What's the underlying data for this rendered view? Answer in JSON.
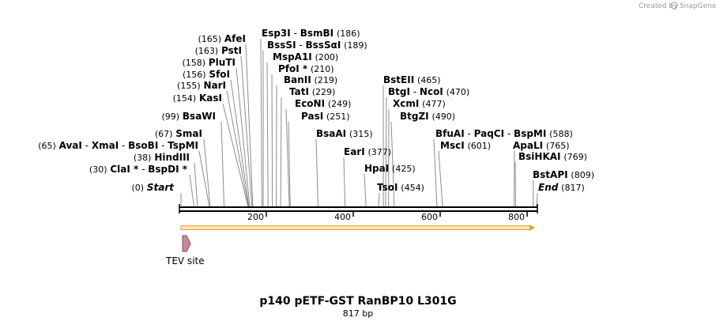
{
  "credit": {
    "prefix": "Created by",
    "brand": "SnapGene"
  },
  "title": "p140 pETF-GST RanBP10 L301G",
  "subtitle": "817 bp",
  "sequence_length": 817,
  "ruler_ticks": [
    "200",
    "400",
    "600",
    "800"
  ],
  "features": [
    {
      "label": "TEV site",
      "start": 0,
      "end": 26,
      "color": "#c9879f"
    }
  ],
  "arrow": {
    "start": 0,
    "end": 817,
    "color": "#e5a32d"
  },
  "site_groups": [
    {
      "names": [
        "End"
      ],
      "pos": "(817)",
      "italic": true
    },
    {
      "names": [
        "BstAPI"
      ],
      "pos": "(809)"
    },
    {
      "names": [
        "BsiHKAI"
      ],
      "pos": "(769)"
    },
    {
      "names": [
        "ApaLI"
      ],
      "pos": "(765)"
    },
    {
      "names": [
        "BfuAI",
        "PaqCI",
        "BspMI"
      ],
      "pos": "(588)"
    },
    {
      "names": [
        "MscI"
      ],
      "pos": "(601)"
    },
    {
      "names": [
        "TsoI"
      ],
      "pos": "(454)"
    },
    {
      "names": [
        "HpaI"
      ],
      "pos": "(425)"
    },
    {
      "names": [
        "EarI"
      ],
      "pos": "(377)"
    },
    {
      "names": [
        "BsaAI"
      ],
      "pos": "(315)"
    },
    {
      "names": [
        "BtgZI"
      ],
      "pos": "(490)"
    },
    {
      "names": [
        "XcmI"
      ],
      "pos": "(477)"
    },
    {
      "names": [
        "BtgI",
        "NcoI"
      ],
      "pos": "(470)"
    },
    {
      "names": [
        "BstEII"
      ],
      "pos": "(465)"
    },
    {
      "names": [
        "PasI"
      ],
      "pos": "(251)"
    },
    {
      "names": [
        "EcoNI"
      ],
      "pos": "(249)"
    },
    {
      "names": [
        "TatI"
      ],
      "pos": "(229)"
    },
    {
      "names": [
        "BanII"
      ],
      "pos": "(219)"
    },
    {
      "names": [
        "PfoI *"
      ],
      "pos": "(210)"
    },
    {
      "names": [
        "MspA1I"
      ],
      "pos": "(200)"
    },
    {
      "names": [
        "BssSI",
        "BssSαI"
      ],
      "pos": "(189)"
    },
    {
      "names": [
        "Esp3I",
        "BsmBI"
      ],
      "pos": "(186)"
    },
    {
      "names": [
        "AfeI"
      ],
      "pos": "(165)"
    },
    {
      "names": [
        "PstI"
      ],
      "pos": "(163)"
    },
    {
      "names": [
        "PluTI"
      ],
      "pos": "(158)"
    },
    {
      "names": [
        "SfoI"
      ],
      "pos": "(156)"
    },
    {
      "names": [
        "NarI"
      ],
      "pos": "(155)"
    },
    {
      "names": [
        "KasI"
      ],
      "pos": "(154)"
    },
    {
      "names": [
        "BsaWI"
      ],
      "pos": "(99)"
    },
    {
      "names": [
        "SmaI"
      ],
      "pos": "(67)"
    },
    {
      "names": [
        "AvaI",
        "XmaI",
        "BsoBI",
        "TspMI"
      ],
      "pos": "(65)"
    },
    {
      "names": [
        "HindIII"
      ],
      "pos": "(38)"
    },
    {
      "names": [
        "ClaI *",
        "BspDI *"
      ],
      "pos": "(30)"
    },
    {
      "names": [
        "Start"
      ],
      "pos": "(0)",
      "italic": true
    }
  ]
}
